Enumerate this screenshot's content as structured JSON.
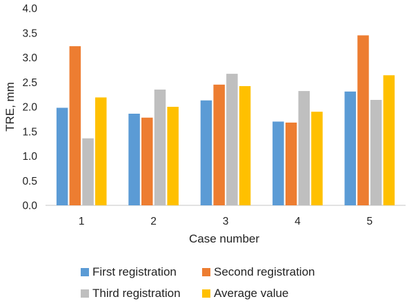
{
  "chart_data": {
    "type": "bar",
    "title": "",
    "xlabel": "Case number",
    "ylabel": "TRE, mm",
    "categories": [
      "1",
      "2",
      "3",
      "4",
      "5"
    ],
    "ylim": [
      0,
      4
    ],
    "yticks": [
      "0.0",
      "0.5",
      "1.0",
      "1.5",
      "2.0",
      "2.5",
      "3.0",
      "3.5",
      "4.0"
    ],
    "grid": false,
    "legend_position": "bottom",
    "series": [
      {
        "name": "First registration",
        "color": "#5b9bd5",
        "values": [
          1.98,
          1.86,
          2.13,
          1.7,
          2.31
        ]
      },
      {
        "name": "Second registration",
        "color": "#ed7d31",
        "values": [
          3.23,
          1.78,
          2.45,
          1.68,
          3.45
        ]
      },
      {
        "name": "Third registration",
        "color": "#bfbfbf",
        "values": [
          1.36,
          2.35,
          2.67,
          2.32,
          2.14
        ]
      },
      {
        "name": "Average value",
        "color": "#ffc000",
        "values": [
          2.19,
          2.0,
          2.42,
          1.9,
          2.64
        ]
      }
    ]
  }
}
